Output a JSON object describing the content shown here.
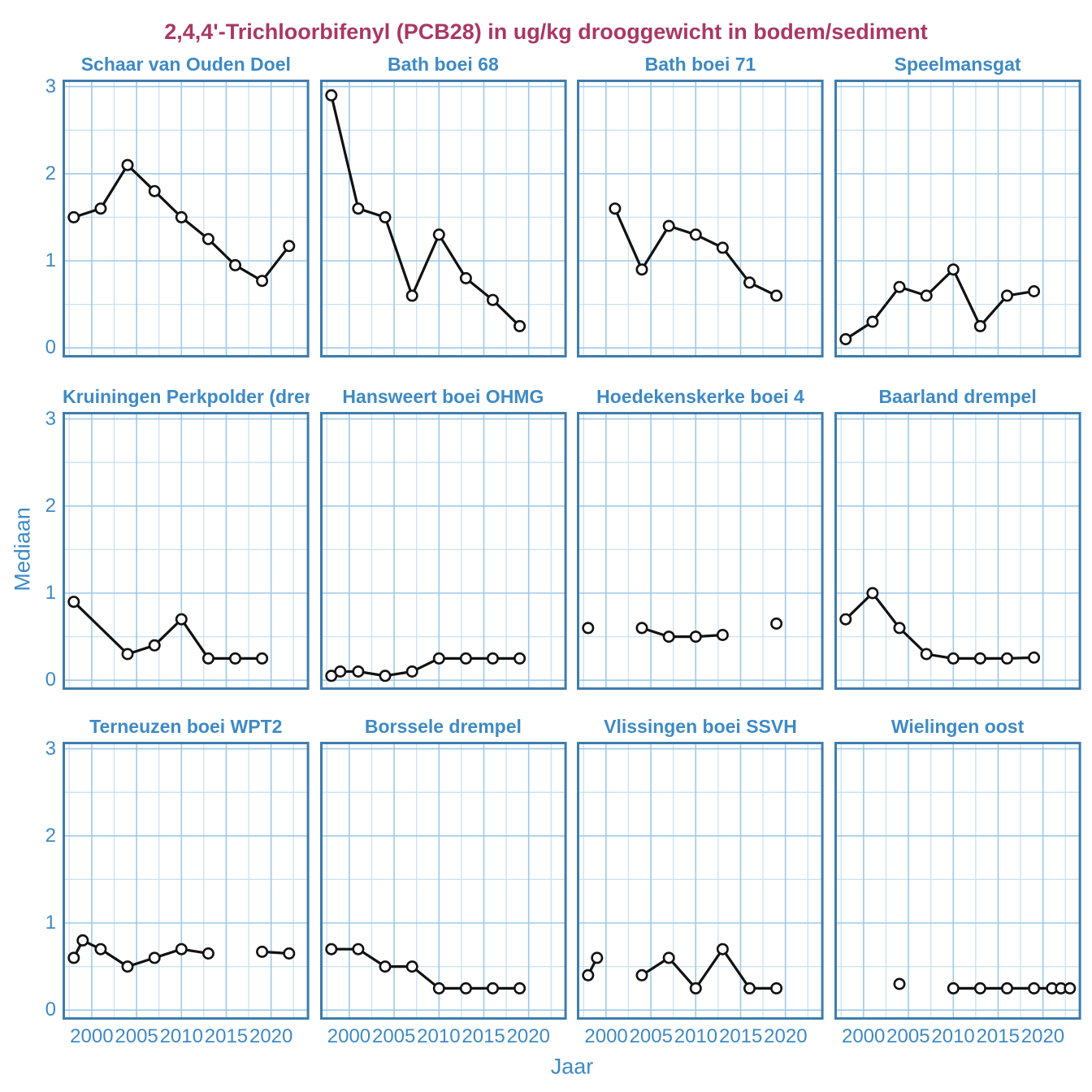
{
  "page_title": "2,4,4'-Trichloorbifenyl (PCB28) in ug/kg drooggewicht in bodem/sediment",
  "colors": {
    "title_text": "#AA3764",
    "axis_text": "#3E8AC4",
    "panel_border": "#3E7DAE",
    "grid_major": "#9FC9E7",
    "grid_minor": "#C9E1F2",
    "data_line": "#111111",
    "marker_fill": "#FFFFFF",
    "background": "#FFFFFF"
  },
  "chart_data": {
    "type": "line",
    "title": "2,4,4'-Trichloorbifenyl (PCB28) in ug/kg drooggewicht in bodem/sediment",
    "xlabel": "Jaar",
    "ylabel": "Mediaan",
    "legend": "none",
    "grid": "major+minor",
    "marker": "open-circle",
    "xlim": [
      1996.75,
      2024.25
    ],
    "ylim": [
      -0.11,
      3.08
    ],
    "x_ticks": [
      2000,
      2005,
      2010,
      2015,
      2020
    ],
    "x_tick_labels": [
      "2000",
      "2005",
      "2010",
      "2015",
      "2020"
    ],
    "y_ticks": [
      0,
      1,
      2,
      3
    ],
    "y_tick_labels": [
      "0",
      "1",
      "2",
      "3"
    ],
    "x_minor_step": 2.5,
    "y_minor_step": 0.5,
    "facets": "3 rows x 4 columns",
    "panels": [
      {
        "title": "Schaar van Ouden Doel",
        "slug": "schaar-van-ouden-doel",
        "segments": [
          [
            [
              1998,
              1.5
            ],
            [
              2001,
              1.6
            ],
            [
              2004,
              2.1
            ],
            [
              2007,
              1.8
            ],
            [
              2010,
              1.5
            ],
            [
              2013,
              1.25
            ],
            [
              2016,
              0.95
            ],
            [
              2019,
              0.77
            ],
            [
              2022,
              1.17
            ]
          ]
        ]
      },
      {
        "title": "Bath boei 68",
        "slug": "bath-boei-68",
        "segments": [
          [
            [
              1998,
              2.9
            ],
            [
              2001,
              1.6
            ],
            [
              2004,
              1.5
            ],
            [
              2007,
              0.6
            ],
            [
              2010,
              1.3
            ],
            [
              2013,
              0.8
            ],
            [
              2016,
              0.55
            ],
            [
              2019,
              0.25
            ]
          ]
        ]
      },
      {
        "title": "Bath boei 71",
        "slug": "bath-boei-71",
        "segments": [
          [
            [
              2001,
              1.6
            ],
            [
              2004,
              0.9
            ],
            [
              2007,
              1.4
            ],
            [
              2010,
              1.3
            ],
            [
              2013,
              1.15
            ],
            [
              2016,
              0.75
            ],
            [
              2019,
              0.6
            ]
          ]
        ]
      },
      {
        "title": "Speelmansgat",
        "slug": "speelmansgat",
        "segments": [
          [
            [
              1998,
              0.1
            ],
            [
              2001,
              0.3
            ],
            [
              2004,
              0.7
            ],
            [
              2007,
              0.6
            ],
            [
              2010,
              0.9
            ],
            [
              2013,
              0.25
            ],
            [
              2016,
              0.6
            ],
            [
              2019,
              0.65
            ]
          ]
        ]
      },
      {
        "title": "Kruiningen Perkpolder (drempel)",
        "slug": "kruiningen-perkpolder-drempel",
        "segments": [
          [
            [
              1998,
              0.9
            ],
            [
              2004,
              0.3
            ],
            [
              2007,
              0.4
            ],
            [
              2010,
              0.7
            ],
            [
              2013,
              0.25
            ],
            [
              2016,
              0.25
            ],
            [
              2019,
              0.25
            ]
          ]
        ]
      },
      {
        "title": "Hansweert boei OHMG",
        "slug": "hansweert-boei-ohmg",
        "segments": [
          [
            [
              1998,
              0.05
            ],
            [
              1999,
              0.1
            ],
            [
              2001,
              0.1
            ],
            [
              2004,
              0.05
            ],
            [
              2007,
              0.1
            ],
            [
              2010,
              0.25
            ],
            [
              2013,
              0.25
            ],
            [
              2016,
              0.25
            ],
            [
              2019,
              0.25
            ]
          ]
        ]
      },
      {
        "title": "Hoedekenskerke boei 4",
        "slug": "hoedekenskerke-boei-4",
        "segments": [
          [
            [
              1998,
              0.6
            ]
          ],
          [
            [
              2004,
              0.6
            ],
            [
              2007,
              0.5
            ],
            [
              2010,
              0.5
            ],
            [
              2013,
              0.52
            ]
          ],
          [
            [
              2019,
              0.65
            ]
          ]
        ]
      },
      {
        "title": "Baarland drempel",
        "slug": "baarland-drempel",
        "segments": [
          [
            [
              1998,
              0.7
            ],
            [
              2001,
              1.0
            ],
            [
              2004,
              0.6
            ],
            [
              2007,
              0.3
            ],
            [
              2010,
              0.25
            ],
            [
              2013,
              0.25
            ],
            [
              2016,
              0.25
            ],
            [
              2019,
              0.26
            ]
          ]
        ]
      },
      {
        "title": "Terneuzen boei WPT2",
        "slug": "terneuzen-boei-wpt2",
        "segments": [
          [
            [
              1998,
              0.6
            ],
            [
              1999,
              0.8
            ],
            [
              2001,
              0.7
            ],
            [
              2004,
              0.5
            ],
            [
              2007,
              0.6
            ],
            [
              2010,
              0.7
            ],
            [
              2013,
              0.65
            ]
          ],
          [
            [
              2019,
              0.67
            ],
            [
              2022,
              0.65
            ]
          ]
        ]
      },
      {
        "title": "Borssele drempel",
        "slug": "borssele-drempel",
        "segments": [
          [
            [
              1998,
              0.7
            ],
            [
              2001,
              0.7
            ],
            [
              2004,
              0.5
            ],
            [
              2007,
              0.5
            ],
            [
              2010,
              0.25
            ],
            [
              2013,
              0.25
            ],
            [
              2016,
              0.25
            ],
            [
              2019,
              0.25
            ]
          ]
        ]
      },
      {
        "title": "Vlissingen boei SSVH",
        "slug": "vlissingen-boei-ssvh",
        "segments": [
          [
            [
              1998,
              0.4
            ],
            [
              1999,
              0.6
            ]
          ],
          [
            [
              2004,
              0.4
            ],
            [
              2007,
              0.6
            ],
            [
              2010,
              0.25
            ],
            [
              2013,
              0.7
            ],
            [
              2016,
              0.25
            ],
            [
              2019,
              0.25
            ]
          ]
        ]
      },
      {
        "title": "Wielingen oost",
        "slug": "wielingen-oost",
        "segments": [
          [
            [
              2004,
              0.3
            ]
          ],
          [
            [
              2010,
              0.25
            ],
            [
              2013,
              0.25
            ],
            [
              2016,
              0.25
            ],
            [
              2019,
              0.25
            ],
            [
              2021,
              0.25
            ],
            [
              2022,
              0.25
            ],
            [
              2023,
              0.25
            ]
          ]
        ]
      }
    ]
  }
}
